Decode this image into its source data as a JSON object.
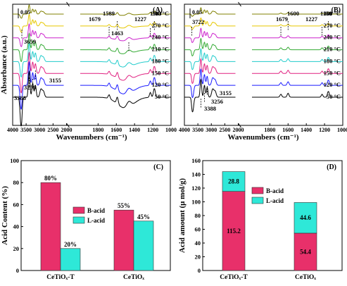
{
  "chart_data": [
    {
      "panel": "(A)",
      "type": "line",
      "xlabel": "Wavenumbers (cm⁻¹)",
      "ylabel": "Absorbance (a.u.)",
      "xlim": [
        4000,
        1000
      ],
      "axis_break": [
        2000,
        2100
      ],
      "x_ticks": [
        "4000",
        "3500",
        "3000",
        "2500",
        "2000",
        "1800",
        "1600",
        "1400",
        "1200",
        "1000"
      ],
      "scale_bar_label": "0.05",
      "series": [
        {
          "name": "300 °C",
          "color": "#808000"
        },
        {
          "name": "270 °C",
          "color": "#e6c800"
        },
        {
          "name": "240 °C",
          "color": "#cc22cc"
        },
        {
          "name": "210 °C",
          "color": "#33aa33"
        },
        {
          "name": "180 °C",
          "color": "#22cccc"
        },
        {
          "name": "150 °C",
          "color": "#e02080"
        },
        {
          "name": "120 °C",
          "color": "#1a1aff"
        },
        {
          "name": "50 °C",
          "color": "#000000"
        }
      ],
      "annotations": [
        "3659",
        "3388",
        "3256",
        "3155",
        "1679",
        "1589",
        "1463",
        "1227",
        "1183"
      ],
      "label": "(A)"
    },
    {
      "panel": "(B)",
      "type": "line",
      "xlabel": "Wavenumbers (cm⁻¹)",
      "ylabel": "",
      "xlim": [
        4000,
        1000
      ],
      "axis_break": [
        2000,
        2100
      ],
      "x_ticks": [
        "4000",
        "3500",
        "3000",
        "2500",
        "2000",
        "1800",
        "1600",
        "1400",
        "1200",
        "1000"
      ],
      "scale_bar_label": "0.05",
      "series": [
        {
          "name": "300 °C",
          "color": "#808000"
        },
        {
          "name": "270 °C",
          "color": "#e6c800"
        },
        {
          "name": "240 °C",
          "color": "#cc22cc"
        },
        {
          "name": "210 °C",
          "color": "#33aa33"
        },
        {
          "name": "180 °C",
          "color": "#22cccc"
        },
        {
          "name": "150 °C",
          "color": "#e02080"
        },
        {
          "name": "120 °C",
          "color": "#1a1aff"
        },
        {
          "name": "50 °C",
          "color": "#000000"
        }
      ],
      "annotations": [
        "3722",
        "3388",
        "3256",
        "3155",
        "1679",
        "1600",
        "1227",
        "1158"
      ],
      "label": "(B)"
    },
    {
      "panel": "(C)",
      "type": "bar",
      "ylabel": "Acid Content (%)",
      "ylim": [
        0,
        100
      ],
      "y_ticks": [
        "0",
        "20",
        "40",
        "60",
        "80",
        "100"
      ],
      "categories": [
        "CeTiOₓ-T",
        "CeTiOₓ"
      ],
      "series": [
        {
          "name": "B-acid",
          "values": [
            80,
            55
          ],
          "color": "#e8306a",
          "labels": [
            "80%",
            "55%"
          ]
        },
        {
          "name": "L-acid",
          "values": [
            20,
            45
          ],
          "color": "#2ee8d8",
          "labels": [
            "20%",
            "45%"
          ]
        }
      ],
      "legend_position": "center-right",
      "label": "(C)"
    },
    {
      "panel": "(D)",
      "type": "bar",
      "stacked": true,
      "ylabel": "Acid amount (μ mol/g)",
      "ylim": [
        0,
        160
      ],
      "y_ticks": [
        "0",
        "20",
        "40",
        "60",
        "80",
        "100",
        "120",
        "140",
        "160"
      ],
      "categories": [
        "CeTiOₓ-T",
        "CeTiOₓ"
      ],
      "series": [
        {
          "name": "B-acid",
          "values": [
            115.2,
            54.4
          ],
          "color": "#e8306a",
          "labels": [
            "115.2",
            "54.4"
          ]
        },
        {
          "name": "L-acid",
          "values": [
            28.8,
            44.6
          ],
          "color": "#2ee8d8",
          "labels": [
            "28.8",
            "44.6"
          ]
        }
      ],
      "legend_position": "top-right",
      "label": "(D)"
    }
  ]
}
